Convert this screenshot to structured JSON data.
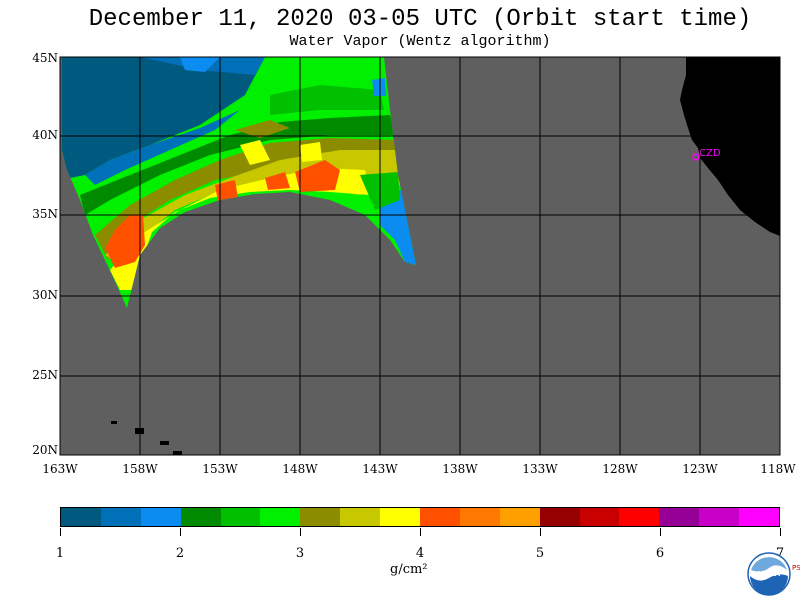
{
  "title": "December 11, 2020  03-05 UTC  (Orbit start time)",
  "subtitle": "Water Vapor (Wentz algorithm)",
  "lat_labels": [
    "45N",
    "40N",
    "35N",
    "30N",
    "25N",
    "20N"
  ],
  "lon_labels": [
    "163W",
    "158W",
    "153W",
    "148W",
    "143W",
    "138W",
    "133W",
    "128W",
    "123W",
    "118W"
  ],
  "station_label": "CZD",
  "colorbar": {
    "colors": [
      "#005a80",
      "#0070b8",
      "#0a8cf0",
      "#008a00",
      "#00c000",
      "#00f000",
      "#8c8c00",
      "#c8c800",
      "#ffff00",
      "#ff5000",
      "#ff7800",
      "#ffa000",
      "#960000",
      "#c80000",
      "#ff0000",
      "#960096",
      "#c800c8",
      "#ff00ff"
    ],
    "tick_labels": [
      "1",
      "2",
      "3",
      "4",
      "5",
      "6",
      "7"
    ],
    "unit_label": "g/cm²"
  },
  "logo_text": "NOAA",
  "psl_text": "PSL"
}
